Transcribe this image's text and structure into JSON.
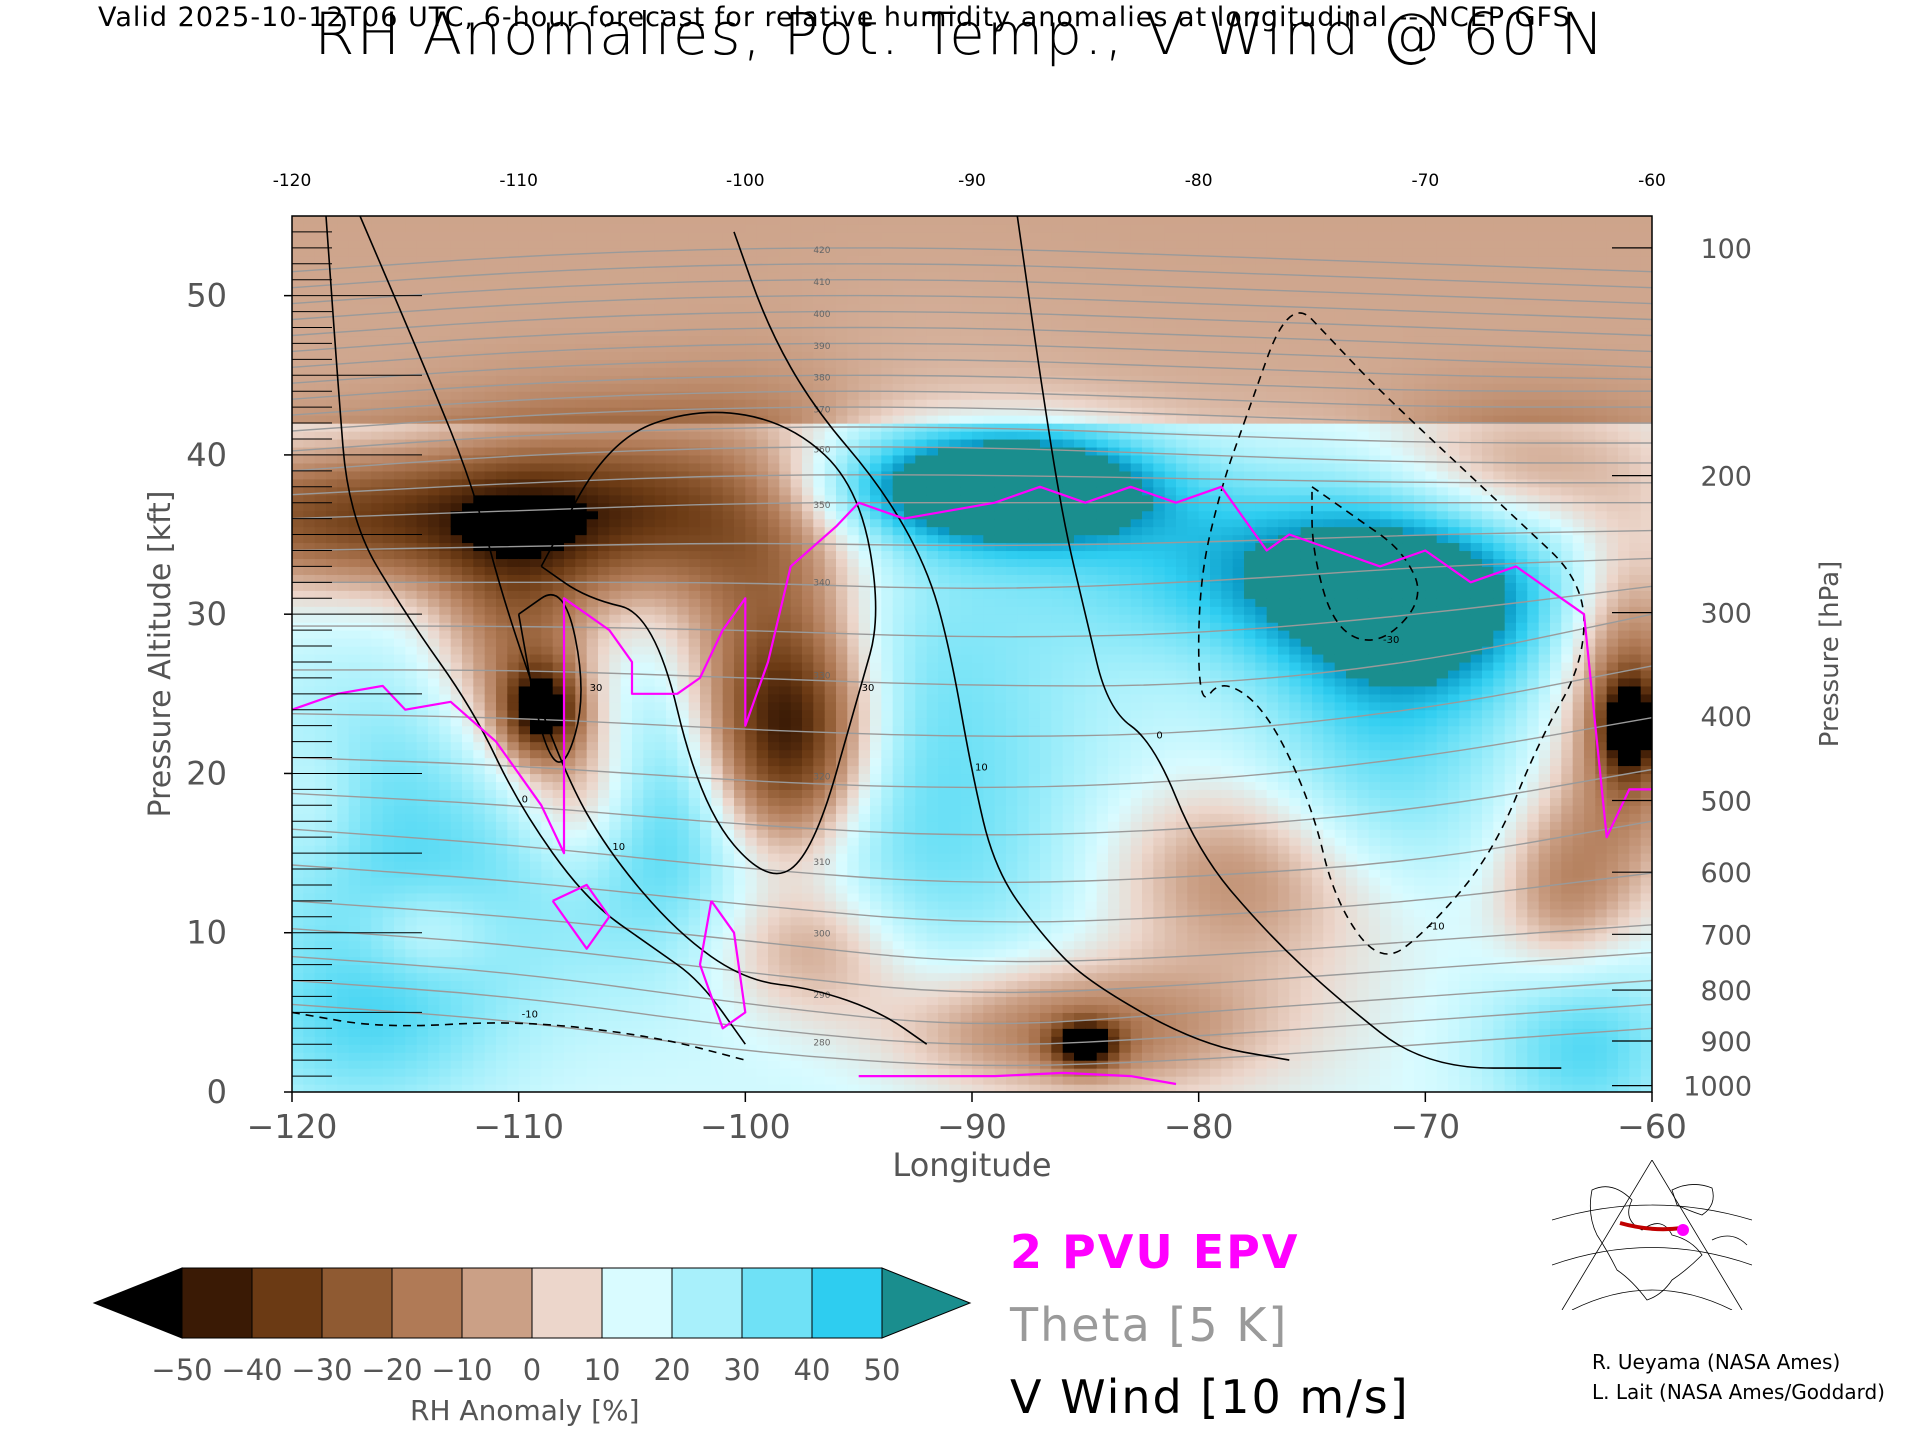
{
  "header": {
    "valid_line": "Valid 2025-10-12T06 UTC, 6-hour forecast for relative humidity anomalies at longitudinal -- NCEP GFS"
  },
  "chart_data": {
    "type": "heatmap",
    "title": "RH Anomalies, Pot. Temp., V Wind @ 60 N",
    "xlabel": "Longitude",
    "ylabel_left": "Pressure Altitude [kft]",
    "ylabel_right": "Pressure [hPa]",
    "xlim": [
      -120,
      -60
    ],
    "ylim": [
      0,
      55
    ],
    "x_ticks": [
      -120,
      -110,
      -100,
      -90,
      -80,
      -70,
      -60
    ],
    "x_tick_labels": [
      "−120",
      "−110",
      "−100",
      "−90",
      "−80",
      "−70",
      "−60"
    ],
    "x_ticks_top_labels": [
      "-120",
      "-110",
      "-100",
      "-90",
      "-80",
      "-70",
      "-60"
    ],
    "y_ticks_left": [
      0,
      10,
      20,
      30,
      40,
      50
    ],
    "y_ticks_right": [
      {
        "hpa": 100,
        "kft": 53.0
      },
      {
        "hpa": 200,
        "kft": 38.7
      },
      {
        "hpa": 300,
        "kft": 30.1
      },
      {
        "hpa": 400,
        "kft": 23.6
      },
      {
        "hpa": 500,
        "kft": 18.3
      },
      {
        "hpa": 600,
        "kft": 13.8
      },
      {
        "hpa": 700,
        "kft": 9.9
      },
      {
        "hpa": 800,
        "kft": 6.4
      },
      {
        "hpa": 900,
        "kft": 3.2
      },
      {
        "hpa": 1000,
        "kft": 0.4
      }
    ],
    "rh_anomaly_blobs": [
      {
        "x": -116,
        "y": 36,
        "sx": 8,
        "sy": 3,
        "v": -45
      },
      {
        "x": -104,
        "y": 37,
        "sx": 6,
        "sy": 4,
        "v": -35
      },
      {
        "x": -110,
        "y": 28,
        "sx": 2.5,
        "sy": 6,
        "v": -35
      },
      {
        "x": -109,
        "y": 24,
        "sx": 1.2,
        "sy": 2,
        "v": -55
      },
      {
        "x": -98,
        "y": 22,
        "sx": 2.5,
        "sy": 5,
        "v": -55
      },
      {
        "x": -99,
        "y": 28,
        "sx": 3,
        "sy": 8,
        "v": -30
      },
      {
        "x": -107,
        "y": 19,
        "sx": 2,
        "sy": 4,
        "v": -30
      },
      {
        "x": -97,
        "y": 9,
        "sx": 3,
        "sy": 3,
        "v": -25
      },
      {
        "x": -86,
        "y": 4,
        "sx": 6,
        "sy": 3,
        "v": -35
      },
      {
        "x": -85,
        "y": 3,
        "sx": 1,
        "sy": 1,
        "v": -55
      },
      {
        "x": -79,
        "y": 14,
        "sx": 4,
        "sy": 4,
        "v": -20
      },
      {
        "x": -74,
        "y": 12,
        "sx": 5,
        "sy": 5,
        "v": -15
      },
      {
        "x": -66,
        "y": 39,
        "sx": 4,
        "sy": 3,
        "v": -20
      },
      {
        "x": -61,
        "y": 24,
        "sx": 2,
        "sy": 7,
        "v": -40
      },
      {
        "x": -61,
        "y": 23,
        "sx": 0.8,
        "sy": 2,
        "v": -55
      },
      {
        "x": -64,
        "y": 13,
        "sx": 2,
        "sy": 4,
        "v": -25
      },
      {
        "x": -114,
        "y": 10,
        "sx": 2,
        "sy": 2,
        "v": -15
      },
      {
        "x": -119,
        "y": 18,
        "sx": 1.5,
        "sy": 3,
        "v": -10
      },
      {
        "x": -87,
        "y": 38,
        "sx": 4,
        "sy": 2.5,
        "v": 48
      },
      {
        "x": -92,
        "y": 38,
        "sx": 5,
        "sy": 2.5,
        "v": 35
      },
      {
        "x": -75,
        "y": 33,
        "sx": 7,
        "sy": 4,
        "v": 38
      },
      {
        "x": -70,
        "y": 30,
        "sx": 4,
        "sy": 4,
        "v": 35
      },
      {
        "x": -93,
        "y": 20,
        "sx": 6,
        "sy": 12,
        "v": 22
      },
      {
        "x": -114,
        "y": 16,
        "sx": 6,
        "sy": 8,
        "v": 22
      },
      {
        "x": -104,
        "y": 18,
        "sx": 3,
        "sy": 6,
        "v": 22
      },
      {
        "x": -72,
        "y": 20,
        "sx": 4,
        "sy": 8,
        "v": 22
      },
      {
        "x": -117,
        "y": 4,
        "sx": 4,
        "sy": 4,
        "v": 18
      },
      {
        "x": -63,
        "y": 3,
        "sx": 3,
        "sy": 4,
        "v": 25
      }
    ],
    "theta_isentropes_K": [
      280,
      290,
      300,
      310,
      320,
      330,
      340,
      350,
      360,
      370,
      380,
      390,
      400,
      410,
      420
    ],
    "theta_contour_kft": {
      "x": [
        -120,
        -110,
        -100,
        -90,
        -80,
        -70,
        -60
      ],
      "lines": [
        {
          "label": "280",
          "y": [
            5.5,
            4.5,
            2.5,
            1.5,
            2.0,
            3.0,
            4.0
          ]
        },
        {
          "label": "290",
          "y": [
            8.5,
            7.5,
            5.5,
            4.0,
            5.0,
            6.0,
            7.0
          ]
        },
        {
          "label": "300",
          "y": [
            12.0,
            11.0,
            9.5,
            8.0,
            8.5,
            9.5,
            10.5
          ]
        },
        {
          "label": "310",
          "y": [
            16.5,
            15.5,
            14.0,
            13.0,
            13.5,
            14.5,
            17.0
          ]
        },
        {
          "label": "320",
          "y": [
            21.0,
            20.5,
            19.5,
            19.0,
            19.5,
            21.0,
            23.5
          ]
        },
        {
          "label": "330",
          "y": [
            26.5,
            26.5,
            26.0,
            25.5,
            25.5,
            27.0,
            30.0
          ]
        },
        {
          "label": "340",
          "y": [
            32.0,
            32.0,
            32.0,
            31.5,
            32.0,
            33.0,
            33.5
          ]
        },
        {
          "label": "350",
          "y": [
            36.0,
            36.5,
            37.0,
            37.0,
            37.0,
            37.0,
            37.0
          ]
        },
        {
          "label": "360",
          "y": [
            39.0,
            40.0,
            40.5,
            40.5,
            40.0,
            39.5,
            39.5
          ]
        },
        {
          "label": "370",
          "y": [
            41.5,
            42.5,
            43.0,
            43.0,
            42.5,
            42.0,
            42.0
          ]
        },
        {
          "label": "380",
          "y": [
            43.5,
            44.5,
            45.0,
            45.0,
            44.5,
            44.0,
            44.0
          ]
        },
        {
          "label": "390",
          "y": [
            45.5,
            46.5,
            47.0,
            47.0,
            46.5,
            46.0,
            45.5
          ]
        },
        {
          "label": "400",
          "y": [
            47.5,
            48.5,
            49.0,
            49.0,
            48.5,
            48.0,
            47.5
          ]
        },
        {
          "label": "410",
          "y": [
            49.5,
            50.5,
            51.0,
            51.0,
            50.5,
            50.0,
            49.5
          ]
        },
        {
          "label": "420",
          "y": [
            51.5,
            52.5,
            53.0,
            53.0,
            52.5,
            52.0,
            51.5
          ]
        }
      ]
    },
    "v_wind_contours": [
      {
        "label": "0",
        "style": "solid",
        "points": [
          [
            -118.5,
            55
          ],
          [
            -118,
            45
          ],
          [
            -117.5,
            36
          ],
          [
            -115,
            30
          ],
          [
            -112,
            24
          ],
          [
            -110,
            18
          ],
          [
            -107,
            12
          ],
          [
            -104,
            9
          ],
          [
            -102,
            7
          ],
          [
            -100,
            3
          ]
        ]
      },
      {
        "label": "0",
        "style": "solid",
        "points": [
          [
            -88,
            55
          ],
          [
            -87,
            45
          ],
          [
            -86,
            36
          ],
          [
            -85,
            30
          ],
          [
            -84,
            24
          ],
          [
            -82,
            22
          ],
          [
            -80,
            15
          ],
          [
            -77,
            10
          ],
          [
            -74,
            6
          ],
          [
            -70,
            1.5
          ],
          [
            -64,
            1.5
          ]
        ]
      },
      {
        "label": "10",
        "style": "solid",
        "points": [
          [
            -100.5,
            54
          ],
          [
            -99,
            48
          ],
          [
            -97,
            43
          ],
          [
            -94,
            38
          ],
          [
            -92,
            33
          ],
          [
            -91,
            28
          ],
          [
            -90,
            20
          ],
          [
            -89,
            14
          ],
          [
            -87,
            10
          ],
          [
            -85,
            7
          ],
          [
            -80,
            3
          ],
          [
            -76,
            2
          ]
        ]
      },
      {
        "label": "10",
        "style": "solid",
        "points": [
          [
            -117,
            55
          ],
          [
            -114,
            45
          ],
          [
            -112,
            38
          ],
          [
            -110.5,
            30
          ],
          [
            -108,
            20
          ],
          [
            -106,
            15
          ],
          [
            -103,
            10
          ],
          [
            -100,
            7
          ],
          [
            -97,
            6.5
          ],
          [
            -94,
            5
          ],
          [
            -92,
            3
          ]
        ]
      },
      {
        "label": "30",
        "style": "solid",
        "points": [
          [
            -109,
            33
          ],
          [
            -106,
            41
          ],
          [
            -102,
            43
          ],
          [
            -98,
            42
          ],
          [
            -95,
            38
          ],
          [
            -94,
            30
          ],
          [
            -95,
            25
          ],
          [
            -97,
            15
          ],
          [
            -99,
            13
          ],
          [
            -102,
            18
          ],
          [
            -104,
            30
          ],
          [
            -107,
            31
          ],
          [
            -109,
            33
          ]
        ]
      },
      {
        "label": "30",
        "style": "solid",
        "points": [
          [
            -110,
            30
          ],
          [
            -109,
            22
          ],
          [
            -108,
            20
          ],
          [
            -107,
            25
          ],
          [
            -108,
            32
          ],
          [
            -110,
            30
          ]
        ]
      },
      {
        "label": "-10",
        "style": "dashed",
        "points": [
          [
            -78,
            42
          ],
          [
            -76,
            50
          ],
          [
            -74,
            47
          ],
          [
            -72,
            44
          ],
          [
            -66,
            36
          ],
          [
            -63,
            32
          ],
          [
            -63,
            27
          ],
          [
            -65,
            22
          ],
          [
            -67,
            15
          ],
          [
            -70,
            10
          ],
          [
            -72,
            8
          ],
          [
            -74,
            12
          ],
          [
            -75,
            18
          ],
          [
            -77,
            24
          ],
          [
            -79,
            26
          ],
          [
            -80,
            24
          ],
          [
            -80,
            32
          ],
          [
            -79,
            38
          ],
          [
            -78,
            42
          ]
        ]
      },
      {
        "label": "-30",
        "style": "dashed",
        "points": [
          [
            -75,
            38
          ],
          [
            -73,
            36
          ],
          [
            -71,
            34
          ],
          [
            -70,
            31
          ],
          [
            -72,
            28
          ],
          [
            -74,
            29
          ],
          [
            -75,
            34
          ],
          [
            -75,
            38
          ]
        ]
      },
      {
        "label": "-10",
        "style": "dashed",
        "points": [
          [
            -120,
            5
          ],
          [
            -116,
            4
          ],
          [
            -110,
            4.5
          ],
          [
            -104,
            3.5
          ],
          [
            -100,
            2
          ]
        ]
      }
    ],
    "epv_2pvu": [
      {
        "points": [
          [
            -120,
            24
          ],
          [
            -118,
            25
          ],
          [
            -116,
            25.5
          ],
          [
            -115,
            24
          ],
          [
            -113,
            24.5
          ],
          [
            -111,
            22
          ],
          [
            -109,
            18
          ],
          [
            -108,
            15
          ],
          [
            -108,
            25
          ],
          [
            -108,
            31
          ],
          [
            -107,
            30
          ],
          [
            -106,
            29
          ],
          [
            -105,
            27
          ],
          [
            -105,
            25
          ],
          [
            -103,
            25
          ],
          [
            -102,
            26
          ],
          [
            -101,
            29
          ],
          [
            -100,
            31
          ],
          [
            -100,
            23
          ],
          [
            -99,
            27
          ],
          [
            -98,
            33
          ],
          [
            -96,
            35.5
          ],
          [
            -95,
            37
          ],
          [
            -93,
            36
          ],
          [
            -91,
            36.5
          ],
          [
            -89,
            37
          ],
          [
            -87,
            38
          ],
          [
            -85,
            37
          ],
          [
            -83,
            38
          ],
          [
            -81,
            37
          ],
          [
            -79,
            38
          ],
          [
            -77,
            34
          ],
          [
            -76,
            35
          ],
          [
            -74,
            34
          ],
          [
            -72,
            33
          ],
          [
            -70,
            34
          ],
          [
            -68,
            32
          ],
          [
            -66,
            33
          ],
          [
            -64,
            31
          ],
          [
            -63,
            30
          ],
          [
            -62,
            16
          ],
          [
            -61,
            19
          ],
          [
            -60,
            19
          ]
        ]
      },
      {
        "points": [
          [
            -108.5,
            12
          ],
          [
            -107,
            13
          ],
          [
            -106,
            11
          ],
          [
            -107,
            9
          ],
          [
            -108.5,
            12
          ]
        ]
      },
      {
        "points": [
          [
            -101.5,
            12
          ],
          [
            -100.5,
            10
          ],
          [
            -100,
            5
          ],
          [
            -101,
            4
          ],
          [
            -102,
            8
          ],
          [
            -101.5,
            12
          ]
        ]
      },
      {
        "points": [
          [
            -95,
            1
          ],
          [
            -92,
            1
          ],
          [
            -89,
            1
          ],
          [
            -86,
            1.2
          ],
          [
            -83,
            1
          ],
          [
            -81,
            0.5
          ]
        ]
      }
    ],
    "colorbar": {
      "label": "RH Anomaly [%]",
      "ticks": [
        -50,
        -40,
        -30,
        -20,
        -10,
        0,
        10,
        20,
        30,
        40,
        50
      ],
      "tick_labels": [
        "−50",
        "−40",
        "−30",
        "−20",
        "−10",
        "0",
        "10",
        "20",
        "30",
        "40",
        "50"
      ],
      "colors": [
        "#3a1a05",
        "#6b3a14",
        "#8f5a32",
        "#b07a56",
        "#cba086",
        "#ecd6cb",
        "#d9fbff",
        "#a8f0fb",
        "#6fe1f6",
        "#2ecdf0",
        "#0a9ac6"
      ],
      "under_color": "#000000",
      "over_color": "#1a8e8e"
    },
    "legend": [
      "2 PVU EPV",
      "Theta [5 K]",
      "V Wind [10 m/s]"
    ],
    "colors": {
      "epv": "#ff00ff",
      "theta": "#9a9a9a",
      "wind": "#000000"
    }
  },
  "credits": [
    "R. Ueyama (NASA Ames)",
    "L. Lait (NASA Ames/Goddard)"
  ],
  "inset_map": {
    "marker_color": "#ff00ff",
    "section_color": "#c00000"
  }
}
